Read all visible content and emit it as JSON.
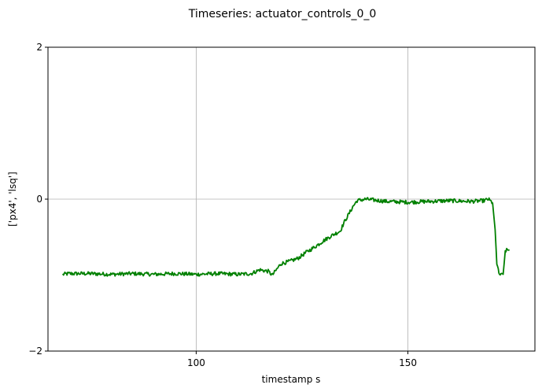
{
  "chart_data": {
    "type": "line",
    "title": "Timeseries: actuator_controls_0_0",
    "xlabel": "timestamp s",
    "ylabel": "['px4', 'lsq']",
    "xlim": [
      65,
      180
    ],
    "ylim": [
      -2,
      2
    ],
    "xticks": [
      100,
      150
    ],
    "xtick_labels": [
      "100",
      "150"
    ],
    "yticks": [
      -2,
      0,
      2
    ],
    "ytick_labels": [
      "−2",
      "0",
      "2"
    ],
    "grid": true,
    "series": [
      {
        "color": "#008000",
        "x": [
          68.5,
          70,
          75,
          80,
          85,
          90,
          95,
          100,
          105,
          110,
          113,
          115,
          117,
          118,
          120,
          122,
          124,
          126,
          128,
          130,
          132,
          134,
          135,
          136,
          137,
          138,
          140,
          145,
          150,
          155,
          160,
          165,
          168,
          169,
          170,
          170.6,
          171,
          171.5,
          172,
          172.5,
          173,
          173.5,
          174
        ],
        "y": [
          -0.99,
          -0.98,
          -0.98,
          -0.99,
          -0.98,
          -0.99,
          -0.98,
          -0.99,
          -0.98,
          -0.99,
          -0.98,
          -0.93,
          -0.95,
          -1.0,
          -0.85,
          -0.82,
          -0.78,
          -0.7,
          -0.63,
          -0.55,
          -0.48,
          -0.42,
          -0.3,
          -0.2,
          -0.1,
          -0.02,
          0.0,
          -0.03,
          -0.04,
          -0.03,
          -0.02,
          -0.03,
          -0.02,
          0.0,
          -0.05,
          -0.4,
          -0.85,
          -0.98,
          -1.0,
          -0.99,
          -0.68,
          -0.67,
          -0.67
        ]
      }
    ]
  }
}
